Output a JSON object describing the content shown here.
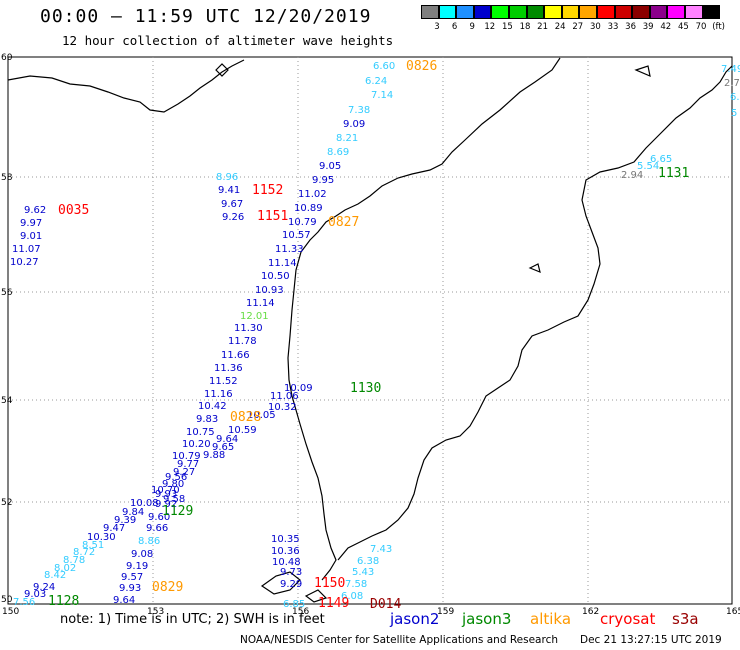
{
  "header": {
    "title": "00:00 — 11:59 UTC 12/20/2019",
    "subtitle": "12 hour collection of altimeter wave heights"
  },
  "legend": {
    "unit_label": "(ft)",
    "items": [
      {
        "label": "3",
        "color": "#7f7f7f"
      },
      {
        "label": "6",
        "color": "#00ffff"
      },
      {
        "label": "9",
        "color": "#1e90ff"
      },
      {
        "label": "12",
        "color": "#0000cd"
      },
      {
        "label": "15",
        "color": "#00ff00"
      },
      {
        "label": "18",
        "color": "#00cd00"
      },
      {
        "label": "21",
        "color": "#008b00"
      },
      {
        "label": "24",
        "color": "#ffff00"
      },
      {
        "label": "27",
        "color": "#ffd700"
      },
      {
        "label": "30",
        "color": "#ffa500"
      },
      {
        "label": "33",
        "color": "#ff0000"
      },
      {
        "label": "36",
        "color": "#cd0000"
      },
      {
        "label": "39",
        "color": "#8b0000"
      },
      {
        "label": "42",
        "color": "#8b008b"
      },
      {
        "label": "45",
        "color": "#ff00ff"
      },
      {
        "label": "70",
        "color": "#ff82ff"
      },
      {
        "label": "",
        "color": "#000000"
      }
    ]
  },
  "axes": {
    "lon_ticks": [
      "150",
      "153",
      "156",
      "159",
      "162",
      "165"
    ],
    "lat_ticks": [
      "60",
      "58",
      "56",
      "54",
      "52",
      "50"
    ]
  },
  "map_labels": [
    {
      "text": "6.60",
      "c": "#33ccff"
    },
    {
      "text": "0826",
      "c": "#ff9900"
    },
    {
      "text": "6.24",
      "c": "#33ccff"
    },
    {
      "text": "7.14",
      "c": "#33ccff"
    },
    {
      "text": "7.38",
      "c": "#33ccff"
    },
    {
      "text": "9.09",
      "c": "#0000cc"
    },
    {
      "text": "8.21",
      "c": "#33ccff"
    },
    {
      "text": "8.69",
      "c": "#33ccff"
    },
    {
      "text": "9.05",
      "c": "#0000cc"
    },
    {
      "text": "9.95",
      "c": "#0000cc"
    },
    {
      "text": "8.96",
      "c": "#33ccff"
    },
    {
      "text": "9.41",
      "c": "#0000cc"
    },
    {
      "text": "1152",
      "c": "#ff0000"
    },
    {
      "text": "11.02",
      "c": "#0000cc"
    },
    {
      "text": "9.67",
      "c": "#0000cc"
    },
    {
      "text": "10.89",
      "c": "#0000cc"
    },
    {
      "text": "9.26",
      "c": "#0000cc"
    },
    {
      "text": "1151",
      "c": "#ff0000"
    },
    {
      "text": "10.79",
      "c": "#0000cc"
    },
    {
      "text": "0827",
      "c": "#ff9900"
    },
    {
      "text": "10.57",
      "c": "#0000cc"
    },
    {
      "text": "11.33",
      "c": "#0000cc"
    },
    {
      "text": "11.14",
      "c": "#0000cc"
    },
    {
      "text": "10.50",
      "c": "#0000cc"
    },
    {
      "text": "10.93",
      "c": "#0000cc"
    },
    {
      "text": "11.14",
      "c": "#0000cc"
    },
    {
      "text": "12.01",
      "c": "#66dd44"
    },
    {
      "text": "11.30",
      "c": "#0000cc"
    },
    {
      "text": "11.78",
      "c": "#0000cc"
    },
    {
      "text": "11.66",
      "c": "#0000cc"
    },
    {
      "text": "11.36",
      "c": "#0000cc"
    },
    {
      "text": "11.52",
      "c": "#0000cc"
    },
    {
      "text": "11.16",
      "c": "#0000cc"
    },
    {
      "text": "10.42",
      "c": "#0000cc"
    },
    {
      "text": "9.83",
      "c": "#0000cc"
    },
    {
      "text": "10.75",
      "c": "#0000cc"
    },
    {
      "text": "10.20",
      "c": "#0000cc"
    },
    {
      "text": "10.09",
      "c": "#0000cc"
    },
    {
      "text": "11.06",
      "c": "#0000cc"
    },
    {
      "text": "10.32",
      "c": "#0000cc"
    },
    {
      "text": "10.05",
      "c": "#0000cc"
    },
    {
      "text": "0828",
      "c": "#ff9900"
    },
    {
      "text": "10.59",
      "c": "#0000cc"
    },
    {
      "text": "9.64",
      "c": "#0000cc"
    },
    {
      "text": "9.65",
      "c": "#0000cc"
    },
    {
      "text": "9.88",
      "c": "#0000cc"
    },
    {
      "text": "10.79",
      "c": "#0000cc"
    },
    {
      "text": "9.77",
      "c": "#0000cc"
    },
    {
      "text": "9.27",
      "c": "#0000cc"
    },
    {
      "text": "9.56",
      "c": "#0000cc"
    },
    {
      "text": "9.80",
      "c": "#0000cc"
    },
    {
      "text": "10.70",
      "c": "#0000cc"
    },
    {
      "text": "9.93",
      "c": "#0000cc"
    },
    {
      "text": "9.58",
      "c": "#0000cc"
    },
    {
      "text": "10.08",
      "c": "#0000cc"
    },
    {
      "text": "9.92",
      "c": "#0000cc"
    },
    {
      "text": "9.84",
      "c": "#0000cc"
    },
    {
      "text": "9.60",
      "c": "#0000cc"
    },
    {
      "text": "9.39",
      "c": "#0000cc"
    },
    {
      "text": "1129",
      "c": "#008800"
    },
    {
      "text": "9.47",
      "c": "#0000cc"
    },
    {
      "text": "9.66",
      "c": "#0000cc"
    },
    {
      "text": "10.30",
      "c": "#0000cc"
    },
    {
      "text": "8.51",
      "c": "#33ccff"
    },
    {
      "text": "8.86",
      "c": "#33ccff"
    },
    {
      "text": "8.72",
      "c": "#33ccff"
    },
    {
      "text": "9.08",
      "c": "#0000cc"
    },
    {
      "text": "8.78",
      "c": "#33ccff"
    },
    {
      "text": "8.02",
      "c": "#33ccff"
    },
    {
      "text": "9.19",
      "c": "#0000cc"
    },
    {
      "text": "8.42",
      "c": "#33ccff"
    },
    {
      "text": "9.57",
      "c": "#0000cc"
    },
    {
      "text": "9.24",
      "c": "#0000cc"
    },
    {
      "text": "9.93",
      "c": "#0000cc"
    },
    {
      "text": "0829",
      "c": "#ff9900"
    },
    {
      "text": "9.03",
      "c": "#0000cc"
    },
    {
      "text": "7.56",
      "c": "#33ccff"
    },
    {
      "text": "1128",
      "c": "#008800"
    },
    {
      "text": "9.64",
      "c": "#0000cc"
    },
    {
      "text": "9.62",
      "c": "#0000cc"
    },
    {
      "text": "0035",
      "c": "#ff0000"
    },
    {
      "text": "9.97",
      "c": "#0000cc"
    },
    {
      "text": "9.01",
      "c": "#0000cc"
    },
    {
      "text": "11.07",
      "c": "#0000cc"
    },
    {
      "text": "10.27",
      "c": "#0000cc"
    },
    {
      "text": "1130",
      "c": "#008800"
    },
    {
      "text": "10.35",
      "c": "#0000cc"
    },
    {
      "text": "10.36",
      "c": "#0000cc"
    },
    {
      "text": "10.48",
      "c": "#0000cc"
    },
    {
      "text": "9.73",
      "c": "#0000cc"
    },
    {
      "text": "9.29",
      "c": "#0000cc"
    },
    {
      "text": "7.43",
      "c": "#33ccff"
    },
    {
      "text": "6.38",
      "c": "#33ccff"
    },
    {
      "text": "5.43",
      "c": "#33ccff"
    },
    {
      "text": "7.58",
      "c": "#33ccff"
    },
    {
      "text": "1150",
      "c": "#ff0000"
    },
    {
      "text": "6.08",
      "c": "#33ccff"
    },
    {
      "text": "6.85",
      "c": "#33ccff"
    },
    {
      "text": "1149",
      "c": "#ff0000"
    },
    {
      "text": "D014",
      "c": "#990000"
    },
    {
      "text": "7.49",
      "c": "#33ccff"
    },
    {
      "text": "2.7",
      "c": "#777777"
    },
    {
      "text": "6.",
      "c": "#33ccff"
    },
    {
      "text": "5",
      "c": "#33ccff"
    },
    {
      "text": "6.65",
      "c": "#33ccff"
    },
    {
      "text": "5.54",
      "c": "#33ccff"
    },
    {
      "text": "2.94",
      "c": "#777777"
    },
    {
      "text": "1131",
      "c": "#008800"
    }
  ],
  "footer": {
    "note": "note: 1) Time is in UTC; 2) SWH is in feet",
    "satellites": [
      {
        "name": "jason2",
        "color": "#0000cc"
      },
      {
        "name": "jason3",
        "color": "#008800"
      },
      {
        "name": "altika",
        "color": "#ff9900"
      },
      {
        "name": "cryosat",
        "color": "#ff0000"
      },
      {
        "name": "s3a",
        "color": "#990000"
      }
    ],
    "credit": "NOAA/NESDIS Center for Satellite Applications and Research",
    "timestamp": "Dec 21 13:27:15 UTC 2019"
  }
}
